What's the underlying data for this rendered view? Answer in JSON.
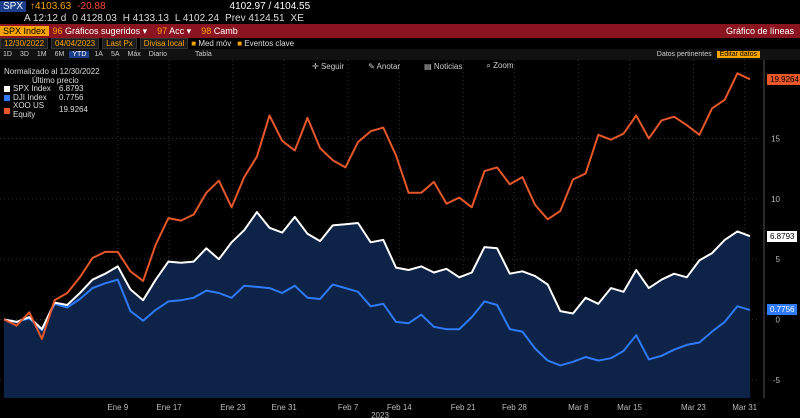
{
  "header": {
    "ticker": "SPX",
    "price": "↑4103.63",
    "change": "-20.88",
    "bidask": "4102.97 / 4104.55",
    "time": "A 12:12 d",
    "open": "0 4128.03",
    "high": "H 4133.13",
    "low": "L 4102.24",
    "prev": "Prev 4124.51",
    "xe": "XE",
    "security": "SPX Index",
    "menu_sugeridos": "Gráficos sugeridos",
    "menu_acc": "Acc",
    "menu_camb": "Camb",
    "chart_type": "Gráfico de líneas"
  },
  "controls": {
    "start_date": "12/30/2022",
    "end_date": "04/04/2023",
    "field": "Last Px",
    "currency": "Divisa local",
    "med_mov": "Med móv",
    "eventos": "Eventos clave",
    "periods": [
      "1D",
      "3D",
      "1M",
      "6M",
      "YTD",
      "1A",
      "5A",
      "Máx",
      "Diario"
    ],
    "selected_period": "YTD",
    "tabla": "Tabla",
    "datos": "Datos pertinentes",
    "editar": "Editar datos"
  },
  "toolbar": {
    "seguir": "Seguir",
    "anotar": "Anotar",
    "noticias": "Noticias",
    "zoom": "Zoom"
  },
  "legend": {
    "title": "Normalizado al 12/30/2022",
    "subtitle": "Último precio"
  },
  "colors": {
    "spx": "#ffffff",
    "dji": "#2f7bff",
    "xoo": "#e8572a",
    "fill": "#0d2347",
    "background": "#000000",
    "accent": "#f7a400"
  },
  "chart_data": {
    "type": "line",
    "title": "",
    "xlabel": "2023",
    "ylabel": "",
    "x_ticks": [
      "Ene 9",
      "Ene 17",
      "Ene 23",
      "Ene 31",
      "Feb 7",
      "Feb 14",
      "Feb 21",
      "Feb 28",
      "Mar 8",
      "Mar 15",
      "Mar 23",
      "Mar 31"
    ],
    "y_ticks": [
      -5,
      0,
      5,
      10,
      15
    ],
    "ylim": [
      -6.5,
      21.5
    ],
    "grid": true,
    "legend_position": "top-left",
    "series": [
      {
        "name": "SPX Index",
        "last": "6.8793",
        "values": [
          0,
          -0.2,
          0.2,
          -0.8,
          1.4,
          1.2,
          2.2,
          3.3,
          3.8,
          4.4,
          2.5,
          1.6,
          3.3,
          4.8,
          4.7,
          4.8,
          5.9,
          5.0,
          6.4,
          7.4,
          8.9,
          7.6,
          7.2,
          8.5,
          7.1,
          6.5,
          7.8,
          7.9,
          8.0,
          6.4,
          6.6,
          4.3,
          4.1,
          4.4,
          3.9,
          4.2,
          3.5,
          3.9,
          6.0,
          5.9,
          3.8,
          4.0,
          3.6,
          2.9,
          0.7,
          0.5,
          1.8,
          1.3,
          2.6,
          2.3,
          4.1,
          2.6,
          3.3,
          3.8,
          3.5,
          4.9,
          5.5,
          6.6,
          7.3,
          6.9
        ]
      },
      {
        "name": "DJI Index",
        "last": "0.7756",
        "values": [
          0,
          -0.2,
          0.1,
          -0.9,
          1.3,
          1.0,
          1.7,
          2.6,
          3.0,
          3.3,
          0.7,
          -0.1,
          0.8,
          1.5,
          1.6,
          1.8,
          2.4,
          2.2,
          1.8,
          2.8,
          2.7,
          2.6,
          2.2,
          2.8,
          1.8,
          1.7,
          2.9,
          2.6,
          2.3,
          1.1,
          1.3,
          -0.2,
          -0.3,
          0.4,
          -0.6,
          -0.8,
          -0.8,
          0.2,
          1.5,
          1.2,
          -0.8,
          -1.0,
          -2.4,
          -3.4,
          -3.8,
          -3.5,
          -3.1,
          -3.4,
          -3.2,
          -2.6,
          -1.3,
          -3.3,
          -3.0,
          -2.5,
          -2.1,
          -1.9,
          -1.0,
          -0.2,
          1.1,
          0.8
        ]
      },
      {
        "name": "XOO US Equity",
        "last": "19.9264",
        "values": [
          0,
          -0.5,
          0.6,
          -1.6,
          1.6,
          2.2,
          3.5,
          5.1,
          5.6,
          5.6,
          4.0,
          3.2,
          6.2,
          8.4,
          8.2,
          8.7,
          10.5,
          11.5,
          9.3,
          11.8,
          13.5,
          16.9,
          14.8,
          14.0,
          16.7,
          14.2,
          13.2,
          12.6,
          14.7,
          15.6,
          15.9,
          13.6,
          10.5,
          10.5,
          11.4,
          9.6,
          10.1,
          9.3,
          12.3,
          12.6,
          11.2,
          11.8,
          9.5,
          8.3,
          9.0,
          11.6,
          12.1,
          15.3,
          14.9,
          15.4,
          16.9,
          15.0,
          16.5,
          16.8,
          16.1,
          15.3,
          17.5,
          18.2,
          20.4,
          19.9
        ]
      }
    ]
  }
}
